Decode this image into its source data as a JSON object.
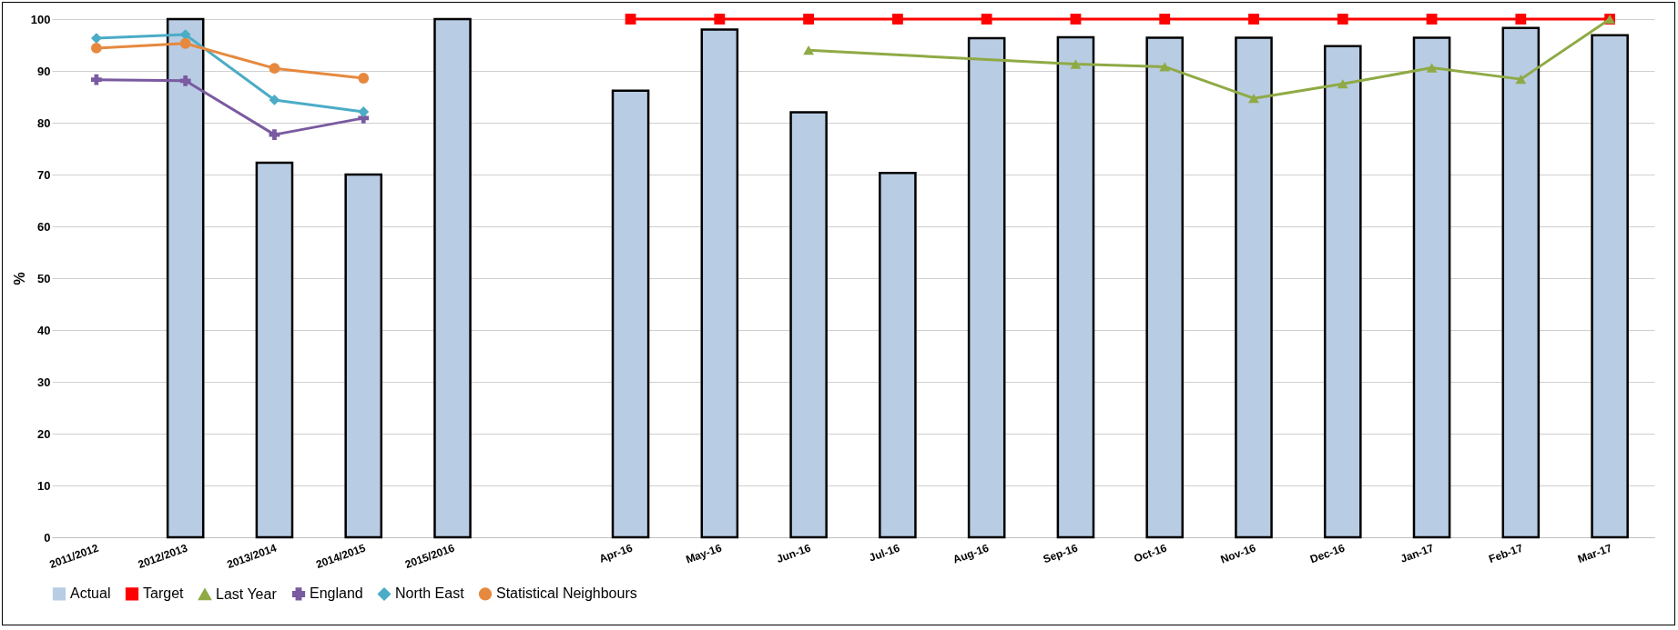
{
  "chart_data": {
    "type": "bar",
    "ylabel": "%",
    "categories": [
      "2011/2012",
      "2012/2013",
      "2013/2014",
      "2014/2015",
      "2015/2016",
      null,
      "Apr-16",
      "May-16",
      "Jun-16",
      "Jul-16",
      "Aug-16",
      "Sep-16",
      "Oct-16",
      "Nov-16",
      "Dec-16",
      "Jan-17",
      "Feb-17",
      "Mar-17"
    ],
    "series": [
      {
        "name": "Actual",
        "color": "#b8cce4",
        "values": [
          null,
          100,
          72.3,
          70,
          100,
          null,
          86.2,
          98,
          82,
          70.3,
          96.3,
          96.5,
          96.4,
          96.4,
          94.8,
          96.4,
          98.3,
          96.9
        ]
      },
      {
        "name": "Target",
        "type": "line",
        "marker": "square",
        "color": "#ff0000",
        "values": [
          null,
          null,
          null,
          null,
          null,
          null,
          100,
          100,
          100,
          100,
          100,
          100,
          100,
          100,
          100,
          100,
          100,
          100
        ]
      },
      {
        "name": "Last Year",
        "type": "line",
        "marker": "triangle",
        "color": "#8faa45",
        "values": [
          null,
          null,
          null,
          null,
          null,
          null,
          null,
          null,
          94,
          null,
          null,
          91.3,
          90.8,
          84.7,
          87.5,
          90.6,
          88.4,
          100
        ]
      },
      {
        "name": "England",
        "type": "line",
        "marker": "cross",
        "color": "#7a5aa0",
        "values": [
          88.3,
          88.1,
          77.7,
          80.9,
          null,
          null,
          null,
          null,
          null,
          null,
          null,
          null,
          null,
          null,
          null,
          null,
          null,
          null
        ]
      },
      {
        "name": "North East",
        "type": "line",
        "marker": "diamond",
        "color": "#4bacc6",
        "values": [
          96.3,
          97,
          84.4,
          82.1,
          null,
          null,
          null,
          null,
          null,
          null,
          null,
          null,
          null,
          null,
          null,
          null,
          null,
          null
        ]
      },
      {
        "name": "Statistical Neighbours",
        "type": "line",
        "marker": "circle",
        "color": "#e6893f",
        "values": [
          94.4,
          95.3,
          90.5,
          88.6,
          null,
          null,
          null,
          null,
          null,
          null,
          null,
          null,
          null,
          null,
          null,
          null,
          null,
          null
        ]
      }
    ],
    "ylim": [
      0,
      100
    ],
    "yticks": [
      0,
      10,
      20,
      30,
      40,
      50,
      60,
      70,
      80,
      90,
      100
    ],
    "grid": "y",
    "legend": "bottom",
    "line_style": "solid"
  }
}
